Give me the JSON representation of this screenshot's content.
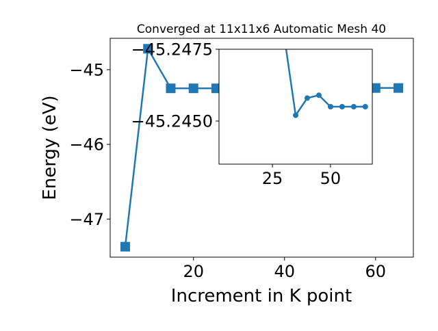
{
  "chart_data": [
    {
      "type": "line",
      "title": "Converged at 11x11x6 Automatic Mesh 40",
      "xlabel": "Increment in K point",
      "ylabel": "Energy (eV)",
      "xlim": [
        1.7,
        68.3
      ],
      "ylim": [
        -47.51,
        -44.58
      ],
      "xticks": [
        20,
        40,
        60
      ],
      "xtick_labels": [
        "20",
        "40",
        "60"
      ],
      "yticks": [
        -45,
        -46,
        -47
      ],
      "ytick_labels": [
        "−45",
        "−46",
        "−47"
      ],
      "grid": false,
      "marker": "square",
      "color": "#1f77b4",
      "series": [
        {
          "x": [
            5,
            10,
            15,
            20,
            25,
            30,
            35,
            40,
            45,
            50,
            55,
            60,
            65
          ],
          "y": [
            -47.37,
            -44.72,
            -45.25,
            -45.25,
            -45.25,
            -45.248,
            -45.2452,
            -45.2458,
            -45.2459,
            -45.2455,
            -45.2455,
            -45.2455,
            -45.2455
          ]
        }
      ]
    },
    {
      "type": "line",
      "role": "inset",
      "xlim": [
        2,
        68
      ],
      "ylim": [
        -45.2435,
        -45.2475
      ],
      "xticks": [
        25,
        50
      ],
      "xtick_labels": [
        "25",
        "50"
      ],
      "yticks": [
        -45.2475,
        -45.245
      ],
      "ytick_labels": [
        "−45.2475",
        "−45.2450"
      ],
      "grid": false,
      "marker": "circle",
      "color": "#1f77b4",
      "series": [
        {
          "x": [
            30,
            35,
            40,
            45,
            50,
            55,
            60,
            65
          ],
          "y": [
            -45.248,
            -45.2452,
            -45.2458,
            -45.2459,
            -45.2455,
            -45.2455,
            -45.2455,
            -45.2455
          ]
        }
      ]
    }
  ]
}
